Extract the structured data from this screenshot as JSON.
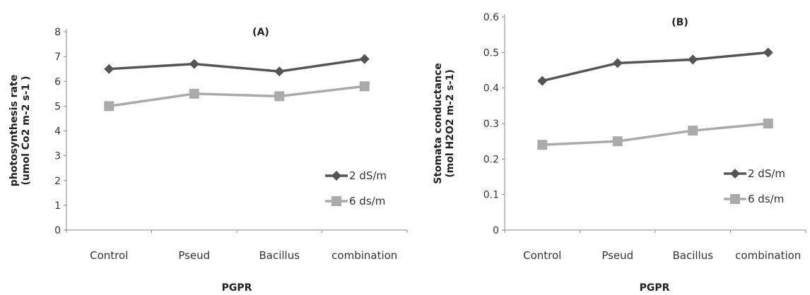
{
  "chart_data": [
    {
      "type": "line",
      "title": "(A)",
      "xlabel": "PGPR",
      "ylabel_lines": [
        "photosynthesis rate",
        "(umol Co2 m-2 s-1 )"
      ],
      "categories": [
        "Control",
        "Pseud",
        "Bacillus",
        "combination"
      ],
      "ylim": [
        0,
        8
      ],
      "yticks": [
        "0",
        "1",
        "2",
        "3",
        "4",
        "5",
        "6",
        "7",
        "8"
      ],
      "series": [
        {
          "name": "2 dS/m",
          "values": [
            6.5,
            6.7,
            6.4,
            6.9
          ],
          "color": "#555555",
          "marker": "diamond"
        },
        {
          "name": "6 ds/m",
          "values": [
            5.0,
            5.5,
            5.4,
            5.8
          ],
          "color": "#aaaaaa",
          "marker": "square"
        }
      ],
      "legend": "right"
    },
    {
      "type": "line",
      "title": "(B)",
      "xlabel": "PGPR",
      "ylabel_lines": [
        "Stomata conductance",
        "(mol H2O2 m-2 s-1)"
      ],
      "categories": [
        "Control",
        "Pseud",
        "Bacillus",
        "combination"
      ],
      "ylim": [
        0,
        0.6
      ],
      "yticks": [
        "0",
        "0.1",
        "0.2",
        "0.3",
        "0.4",
        "0.5",
        "0.6"
      ],
      "series": [
        {
          "name": "2 dS/m",
          "values": [
            0.42,
            0.47,
            0.48,
            0.5
          ],
          "color": "#555555",
          "marker": "diamond"
        },
        {
          "name": "6 ds/m",
          "values": [
            0.24,
            0.25,
            0.28,
            0.3
          ],
          "color": "#aaaaaa",
          "marker": "square"
        }
      ],
      "legend": "right"
    }
  ]
}
